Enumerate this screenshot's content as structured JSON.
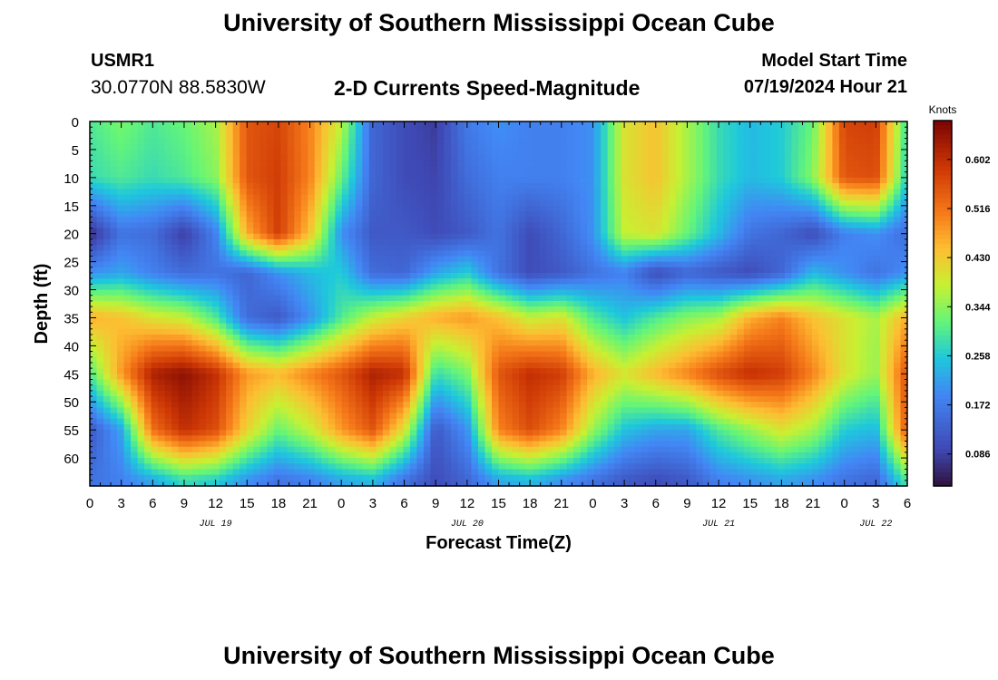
{
  "header": {
    "title": "University of Southern Mississippi Ocean Cube",
    "station": "USMR1",
    "coords": "30.0770N  88.5830W",
    "subtitle": "2-D Currents Speed-Magnitude",
    "model_start_label": "Model Start Time",
    "model_start_value": "07/19/2024 Hour 21"
  },
  "footer": {
    "title": "University of Southern Mississippi Ocean Cube"
  },
  "chart_data": {
    "type": "heatmap",
    "xlabel": "Forecast Time(Z)",
    "ylabel": "Depth (ft)",
    "x_unit": "hours from 0Z Jul 19",
    "x_range": [
      0,
      78
    ],
    "x_tick_hours": [
      0,
      3,
      6,
      9,
      12,
      15,
      18,
      21,
      24,
      27,
      30,
      33,
      36,
      39,
      42,
      45,
      48,
      51,
      54,
      57,
      60,
      63,
      66,
      69,
      72,
      75,
      78
    ],
    "x_tick_labels": [
      "0",
      "3",
      "6",
      "9",
      "12",
      "15",
      "18",
      "21",
      "0",
      "3",
      "6",
      "9",
      "12",
      "15",
      "18",
      "21",
      "0",
      "3",
      "6",
      "9",
      "12",
      "15",
      "18",
      "21",
      "0",
      "3",
      "6"
    ],
    "date_labels": [
      {
        "label": "JUL 19",
        "hour": 12
      },
      {
        "label": "JUL 20",
        "hour": 36
      },
      {
        "label": "JUL 21",
        "hour": 60
      },
      {
        "label": "JUL 22",
        "hour": 75
      }
    ],
    "y_range": [
      0,
      65
    ],
    "y_ticks": [
      0,
      5,
      10,
      15,
      20,
      25,
      30,
      35,
      40,
      45,
      50,
      55,
      60
    ],
    "colorbar": {
      "unit": "Knots",
      "range": [
        0.03,
        0.67
      ],
      "ticks": [
        0.086,
        0.172,
        0.258,
        0.344,
        0.43,
        0.516,
        0.602
      ],
      "tick_labels": [
        "0.086",
        "0.172",
        "0.258",
        "0.344",
        "0.430",
        "0.516",
        "0.602"
      ]
    },
    "x_hours": [
      0,
      3,
      6,
      9,
      12,
      15,
      18,
      21,
      24,
      27,
      30,
      33,
      36,
      39,
      42,
      45,
      48,
      51,
      54,
      57,
      60,
      63,
      66,
      69,
      72,
      75,
      78
    ],
    "depths_ft": [
      0,
      10,
      20,
      27,
      35,
      45,
      55,
      64
    ],
    "speed_knots": [
      [
        0.3,
        0.33,
        0.3,
        0.32,
        0.36,
        0.55,
        0.57,
        0.5,
        0.38,
        0.14,
        0.1,
        0.08,
        0.17,
        0.2,
        0.18,
        0.18,
        0.2,
        0.4,
        0.44,
        0.36,
        0.28,
        0.24,
        0.26,
        0.32,
        0.57,
        0.58,
        0.28
      ],
      [
        0.28,
        0.3,
        0.28,
        0.3,
        0.34,
        0.55,
        0.58,
        0.5,
        0.32,
        0.14,
        0.1,
        0.09,
        0.15,
        0.18,
        0.18,
        0.18,
        0.2,
        0.4,
        0.44,
        0.36,
        0.28,
        0.24,
        0.26,
        0.34,
        0.55,
        0.56,
        0.26
      ],
      [
        0.06,
        0.16,
        0.15,
        0.08,
        0.18,
        0.46,
        0.58,
        0.44,
        0.2,
        0.12,
        0.12,
        0.1,
        0.12,
        0.16,
        0.1,
        0.14,
        0.2,
        0.38,
        0.4,
        0.32,
        0.24,
        0.16,
        0.14,
        0.1,
        0.18,
        0.2,
        0.15
      ],
      [
        0.2,
        0.22,
        0.18,
        0.15,
        0.16,
        0.14,
        0.2,
        0.24,
        0.26,
        0.15,
        0.14,
        0.22,
        0.26,
        0.16,
        0.1,
        0.12,
        0.16,
        0.18,
        0.1,
        0.14,
        0.12,
        0.1,
        0.14,
        0.24,
        0.2,
        0.16,
        0.2
      ],
      [
        0.46,
        0.44,
        0.4,
        0.38,
        0.3,
        0.15,
        0.12,
        0.2,
        0.3,
        0.38,
        0.42,
        0.46,
        0.48,
        0.44,
        0.38,
        0.4,
        0.3,
        0.25,
        0.3,
        0.34,
        0.36,
        0.46,
        0.5,
        0.44,
        0.4,
        0.36,
        0.46
      ],
      [
        0.3,
        0.48,
        0.62,
        0.65,
        0.6,
        0.48,
        0.45,
        0.5,
        0.55,
        0.62,
        0.6,
        0.28,
        0.33,
        0.55,
        0.6,
        0.58,
        0.46,
        0.4,
        0.45,
        0.5,
        0.56,
        0.6,
        0.58,
        0.5,
        0.4,
        0.35,
        0.56
      ],
      [
        0.12,
        0.22,
        0.52,
        0.6,
        0.56,
        0.42,
        0.32,
        0.38,
        0.48,
        0.55,
        0.4,
        0.12,
        0.2,
        0.5,
        0.56,
        0.5,
        0.35,
        0.25,
        0.22,
        0.22,
        0.3,
        0.35,
        0.4,
        0.36,
        0.26,
        0.24,
        0.55
      ],
      [
        0.16,
        0.18,
        0.22,
        0.28,
        0.26,
        0.2,
        0.16,
        0.18,
        0.22,
        0.24,
        0.16,
        0.1,
        0.14,
        0.22,
        0.24,
        0.2,
        0.16,
        0.12,
        0.1,
        0.12,
        0.18,
        0.2,
        0.22,
        0.2,
        0.16,
        0.14,
        0.3
      ]
    ]
  }
}
